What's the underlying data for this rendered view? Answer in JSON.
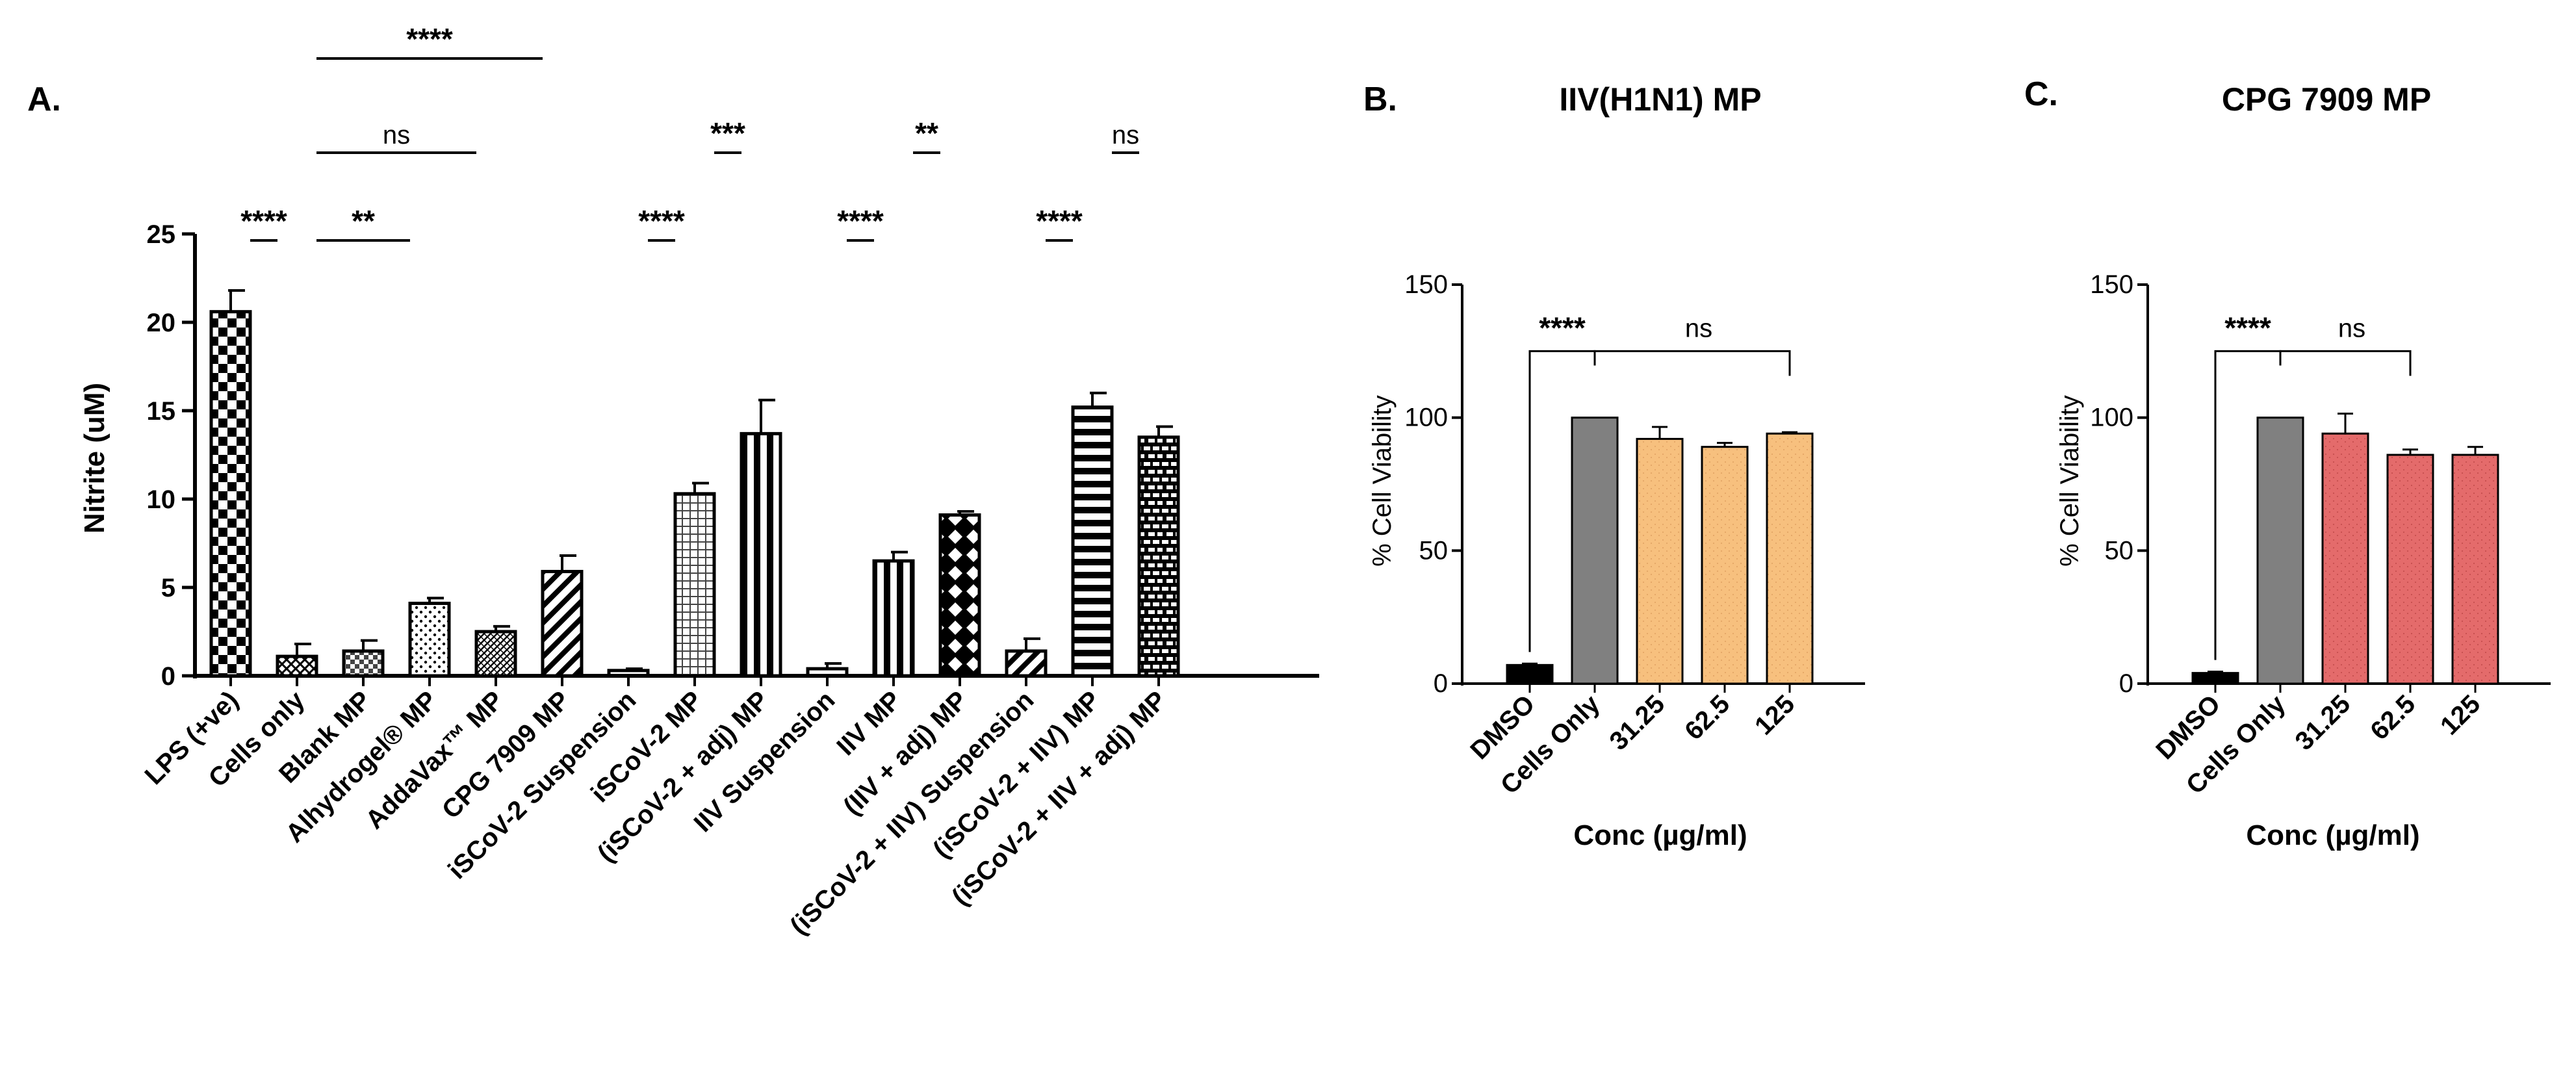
{
  "chart_data": [
    {
      "panel": "A.",
      "type": "bar",
      "title": "",
      "ylabel": "Nitrite (uM)",
      "xlabel": "",
      "ylim": [
        0,
        25
      ],
      "yticks": [
        0,
        5,
        10,
        15,
        20,
        25
      ],
      "categories": [
        "LPS (+ve)",
        "Cells only",
        "Blank MP",
        "Alhydrogel® MP",
        "AddaVax™ MP",
        "CPG 7909 MP",
        "iSCoV-2 Suspension",
        "iSCoV-2 MP",
        "(iSCoV-2 + adj) MP",
        "IIV Suspension",
        "IIV MP",
        "(IIV + adj) MP",
        "(iSCoV-2 + IIV) Suspension",
        "(iSCoV-2 + IIV) MP",
        "(iSCoV-2 + IIV + adj) MP"
      ],
      "values": [
        20.6,
        1.1,
        1.4,
        4.1,
        2.5,
        5.9,
        0.3,
        10.3,
        13.7,
        0.4,
        6.5,
        9.1,
        1.4,
        15.2,
        13.5
      ],
      "errors": [
        1.2,
        0.7,
        0.6,
        0.3,
        0.3,
        0.9,
        0.1,
        0.6,
        1.9,
        0.3,
        0.5,
        0.2,
        0.7,
        0.8,
        0.6
      ],
      "patterns": [
        "checker",
        "crosshatch",
        "checker-fine",
        "dots",
        "diag-dense",
        "diag",
        "solid-white",
        "grid",
        "vertical",
        "solid-white",
        "vertical",
        "diamond",
        "diag",
        "horizontal",
        "brick"
      ],
      "significance": [
        {
          "from": 0,
          "to": 1,
          "label": "****"
        },
        {
          "from": 1,
          "to": 3,
          "label": "**"
        },
        {
          "from": 1,
          "to": 4,
          "label": "ns"
        },
        {
          "from": 1,
          "to": 5,
          "label": "****"
        },
        {
          "from": 6,
          "to": 7,
          "label": "****"
        },
        {
          "from": 7,
          "to": 8,
          "label": "***"
        },
        {
          "from": 9,
          "to": 10,
          "label": "****"
        },
        {
          "from": 10,
          "to": 11,
          "label": "**"
        },
        {
          "from": 12,
          "to": 13,
          "label": "****"
        },
        {
          "from": 13,
          "to": 14,
          "label": "ns"
        }
      ]
    },
    {
      "panel": "B.",
      "type": "bar",
      "title": "IIV(H1N1) MP",
      "ylabel": "% Cell Viability",
      "xlabel": "Conc (µg/ml)",
      "ylim": [
        0,
        150
      ],
      "yticks": [
        0,
        50,
        100,
        150
      ],
      "categories": [
        "DMSO",
        "Cells Only",
        "31.25",
        "62.5",
        "125"
      ],
      "values": [
        7,
        100,
        92,
        89,
        94
      ],
      "errors": [
        0.5,
        0,
        4.5,
        1.5,
        0.5
      ],
      "colors": [
        "#000000",
        "#808080",
        "#f7c07e",
        "#f7c07e",
        "#f7c07e"
      ],
      "significance": [
        {
          "label": "****",
          "left": 0,
          "right": [
            1
          ]
        },
        {
          "label": "ns",
          "left": 1,
          "right": [
            4
          ]
        }
      ]
    },
    {
      "panel": "C.",
      "type": "bar",
      "title": "CPG 7909 MP",
      "ylabel": "% Cell Viability",
      "xlabel": "Conc (µg/ml)",
      "ylim": [
        0,
        150
      ],
      "yticks": [
        0,
        50,
        100,
        150
      ],
      "categories": [
        "DMSO",
        "Cells Only",
        "31.25",
        "62.5",
        "125"
      ],
      "values": [
        4,
        100,
        94,
        86,
        86
      ],
      "errors": [
        0.5,
        0,
        7.5,
        2,
        3
      ],
      "colors": [
        "#000000",
        "#808080",
        "#e46b6b",
        "#e46b6b",
        "#e46b6b"
      ],
      "significance": [
        {
          "label": "****",
          "left": 0,
          "right": [
            1
          ]
        },
        {
          "label": "ns",
          "left": 1,
          "right": [
            3
          ]
        }
      ]
    }
  ]
}
